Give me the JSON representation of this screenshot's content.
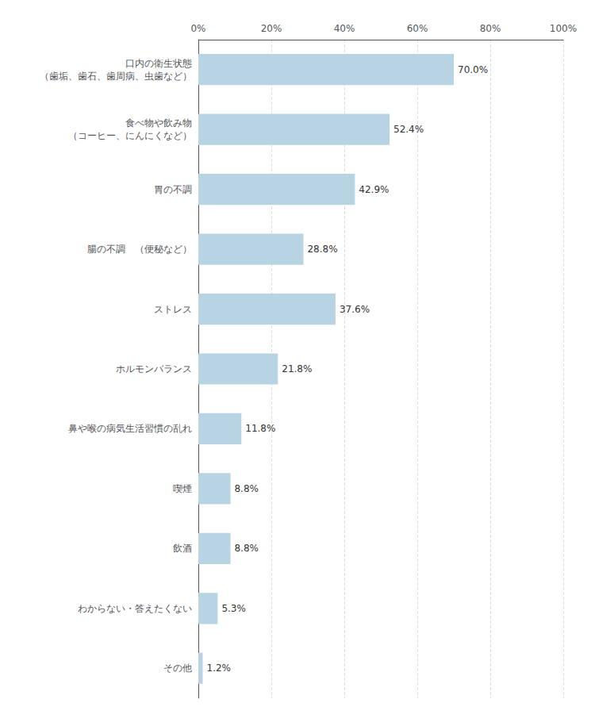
{
  "chart_data": {
    "type": "bar",
    "orientation": "horizontal",
    "categories": [
      "口内の衛生状態\n（歯垢、歯石、歯周病、虫歯など）",
      "食べ物や飲み物\n（コーヒー、にんにくなど）",
      "胃の不調",
      "腸の不調　（便秘など）",
      "ストレス",
      "ホルモンバランス",
      "鼻や喉の病気生活習慣の乱れ",
      "喫煙",
      "飲酒",
      "わからない・答えたくない",
      "その他"
    ],
    "values": [
      70.0,
      52.4,
      42.9,
      28.8,
      37.6,
      21.8,
      11.8,
      8.8,
      8.8,
      5.3,
      1.2
    ],
    "value_labels": [
      "70.0%",
      "52.4%",
      "42.9%",
      "28.8%",
      "37.6%",
      "21.8%",
      "11.8%",
      "8.8%",
      "8.8%",
      "5.3%",
      "1.2%"
    ],
    "data_labels": true,
    "color": "#b8d4e3",
    "xlim": [
      0,
      100
    ],
    "xticks": [
      {
        "value": 0,
        "label": "0%"
      },
      {
        "value": 20,
        "label": "20%"
      },
      {
        "value": 40,
        "label": "40%"
      },
      {
        "value": 60,
        "label": "60%"
      },
      {
        "value": 80,
        "label": "80%"
      },
      {
        "value": 100,
        "label": "100%"
      }
    ],
    "grid": true
  }
}
